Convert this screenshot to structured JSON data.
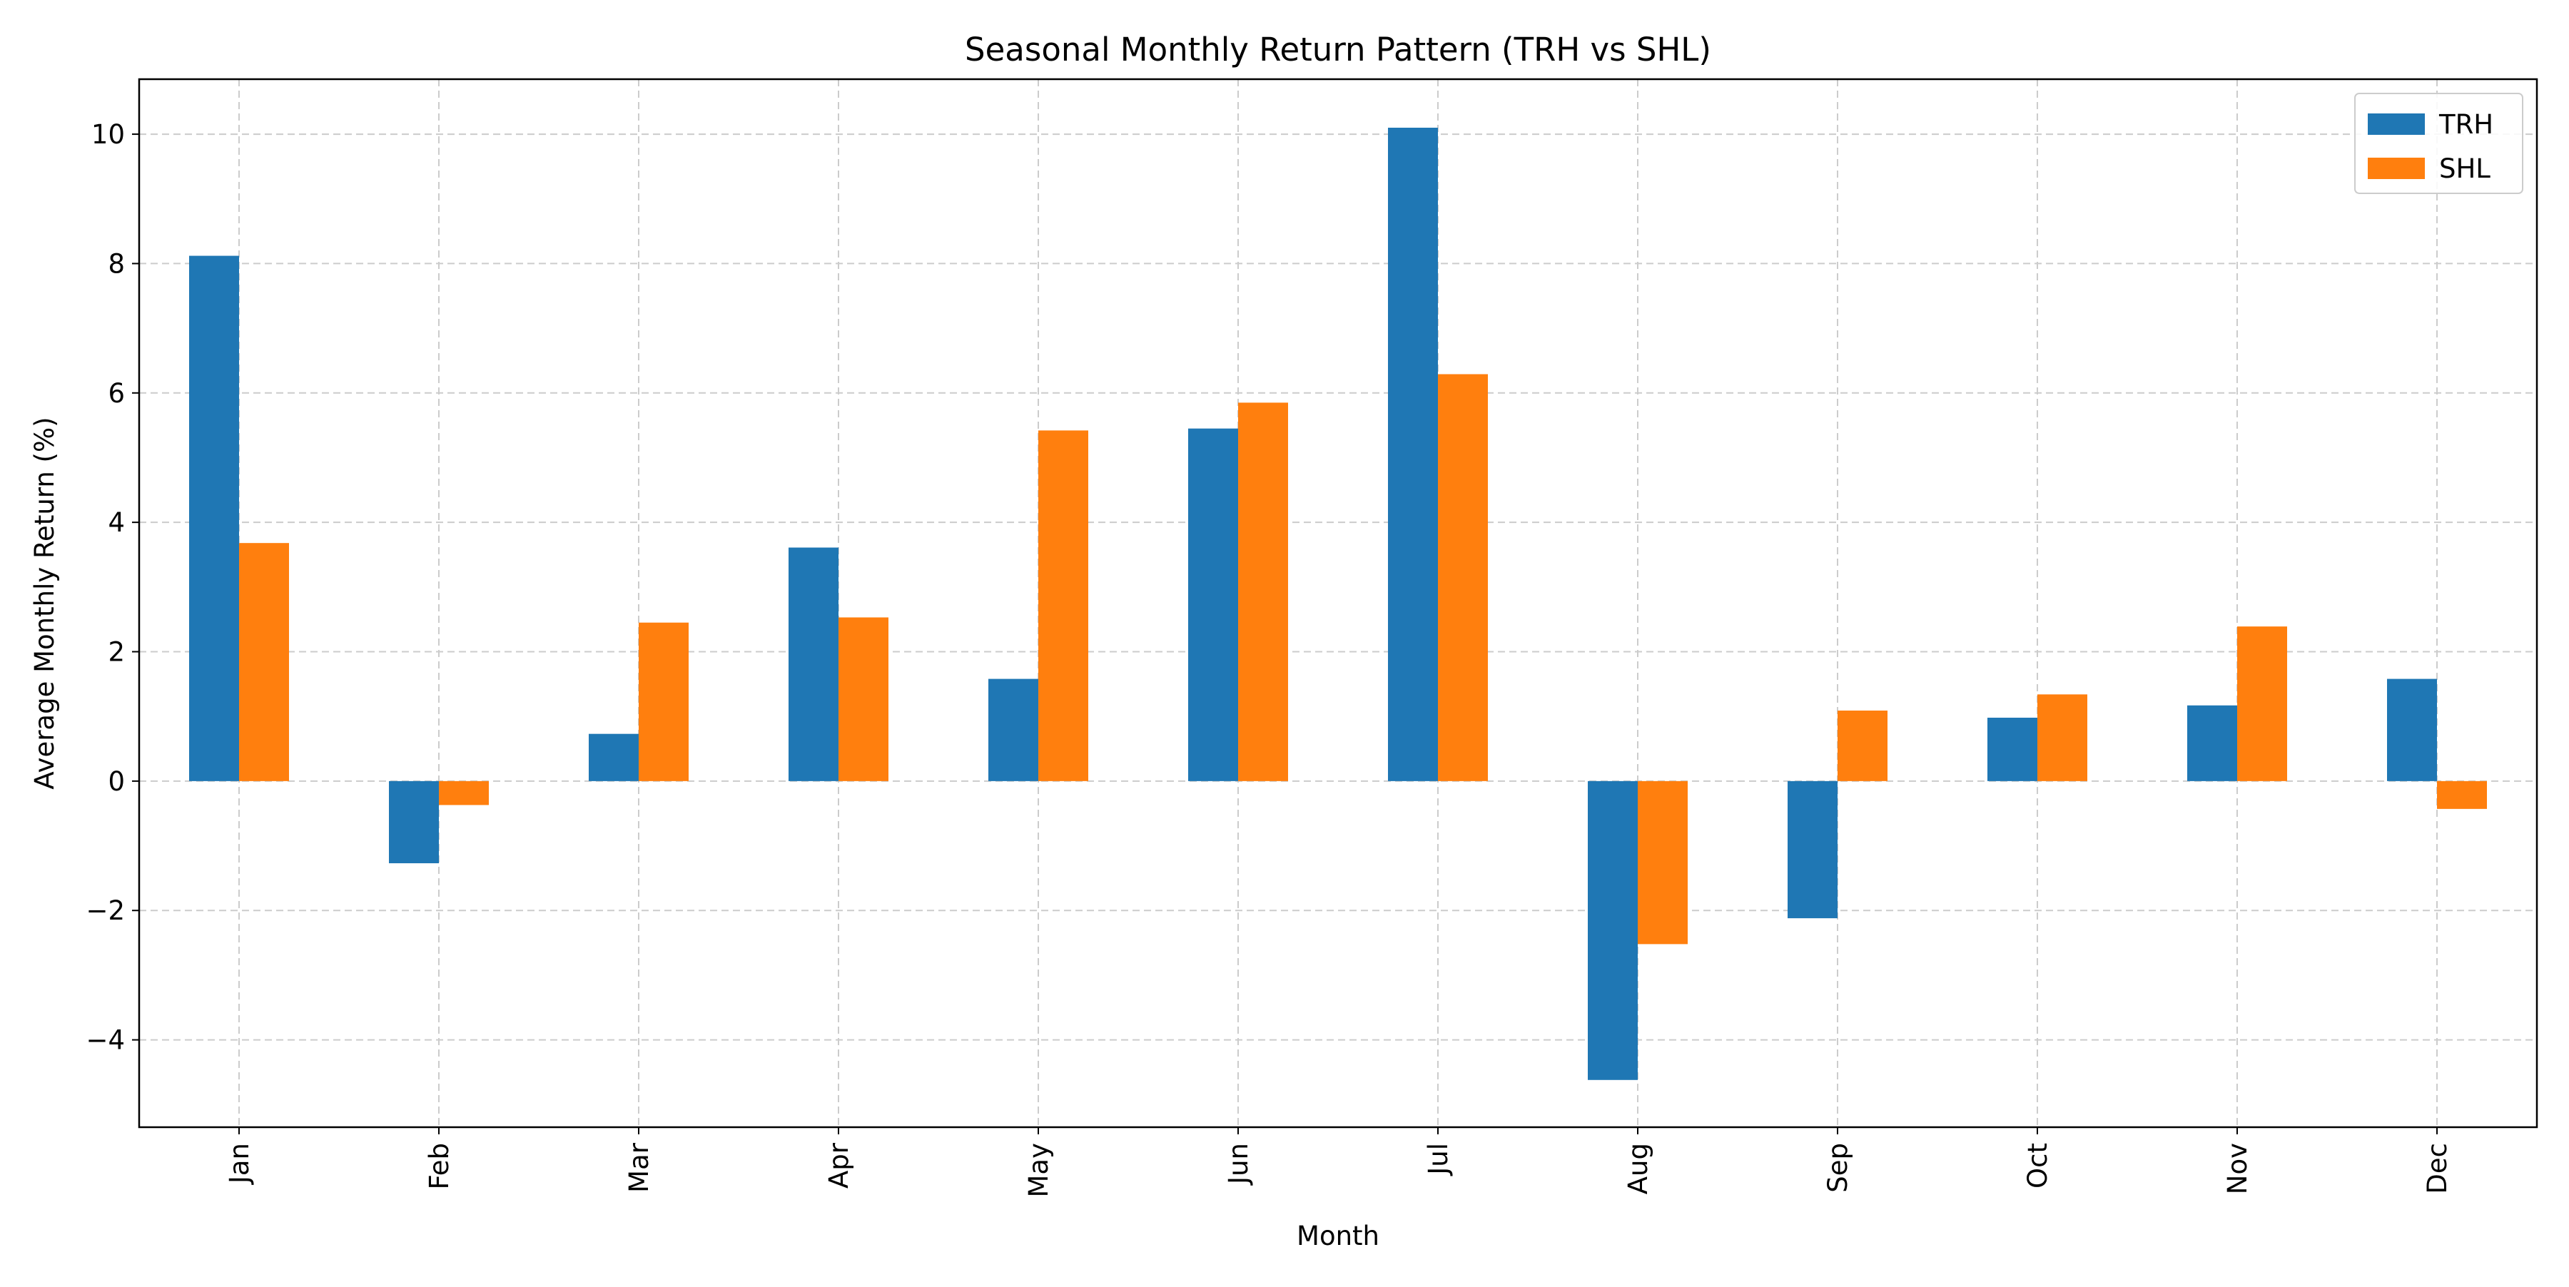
{
  "chart_data": {
    "type": "bar",
    "title": "Seasonal Monthly Return Pattern (TRH vs SHL)",
    "xlabel": "Month",
    "ylabel": "Average Monthly Return (%)",
    "categories": [
      "Jan",
      "Feb",
      "Mar",
      "Apr",
      "May",
      "Jun",
      "Jul",
      "Aug",
      "Sep",
      "Oct",
      "Nov",
      "Dec"
    ],
    "series": [
      {
        "name": "TRH",
        "color": "#1f77b4",
        "values": [
          8.12,
          -1.27,
          0.73,
          3.61,
          1.58,
          5.45,
          10.1,
          -4.62,
          -2.12,
          0.98,
          1.17,
          1.58
        ]
      },
      {
        "name": "SHL",
        "color": "#ff7f0e",
        "values": [
          3.68,
          -0.37,
          2.45,
          2.53,
          5.42,
          5.85,
          6.29,
          -2.52,
          1.09,
          1.34,
          2.39,
          -0.43
        ]
      }
    ],
    "ylim": [
      -5.35,
      10.85
    ],
    "yticks": [
      -4,
      -2,
      0,
      2,
      4,
      6,
      8,
      10
    ],
    "ytick_labels": [
      "−4",
      "−2",
      "0",
      "2",
      "4",
      "6",
      "8",
      "10"
    ],
    "grid": true,
    "legend_position": "top-right",
    "xtick_rotation": "vertical"
  }
}
